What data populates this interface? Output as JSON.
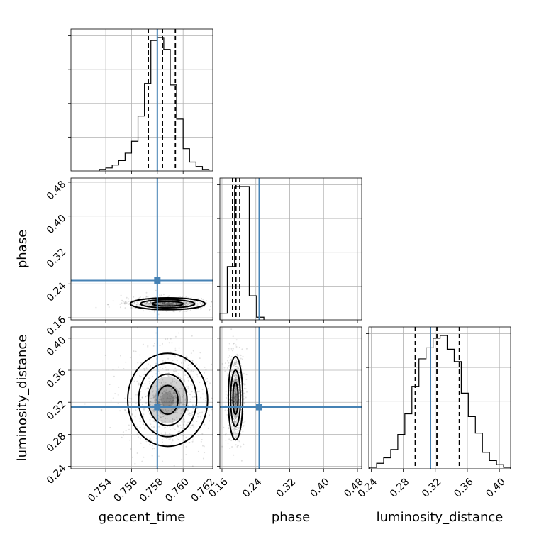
{
  "chart_data": {
    "type": "corner",
    "parameters": [
      "geocent_time",
      "phase",
      "luminosity_distance"
    ],
    "truths": {
      "geocent_time": 0.758,
      "phase": 0.248,
      "luminosity_distance": 0.314
    },
    "quantiles": {
      "geocent_time": [
        0.7573,
        0.7584,
        0.7594
      ],
      "phase": [
        0.185,
        0.193,
        0.202
      ],
      "luminosity_distance": [
        0.295,
        0.322,
        0.35
      ]
    },
    "ranges": {
      "geocent_time": [
        0.7513,
        0.7623
      ],
      "phase": [
        0.155,
        0.49
      ],
      "luminosity_distance": [
        0.237,
        0.414
      ]
    },
    "ticks": {
      "geocent_time": [
        "0.754",
        "0.756",
        "0.758",
        "0.760",
        "0.762"
      ],
      "phase": [
        "0.16",
        "0.24",
        "0.32",
        "0.40",
        "0.48"
      ],
      "luminosity_distance": [
        "0.24",
        "0.28",
        "0.32",
        "0.36",
        "0.40"
      ]
    },
    "histograms": {
      "geocent_time": {
        "edges": [
          0.7535,
          0.754,
          0.7545,
          0.755,
          0.7555,
          0.756,
          0.7565,
          0.757,
          0.7575,
          0.758,
          0.7585,
          0.759,
          0.7595,
          0.76,
          0.7605,
          0.761,
          0.7615,
          0.762
        ],
        "counts": [
          1,
          2,
          4,
          7,
          12,
          20,
          37,
          59,
          88,
          90,
          82,
          58,
          35,
          15,
          6,
          3,
          1
        ]
      },
      "phase": {
        "edges": [
          0.155,
          0.1725,
          0.1898,
          0.2071,
          0.2244,
          0.2417,
          0.259
        ],
        "counts": [
          5,
          40,
          100,
          100,
          18,
          2
        ]
      },
      "luminosity_distance": {
        "edges": [
          0.238,
          0.2468,
          0.2556,
          0.2644,
          0.2732,
          0.282,
          0.2908,
          0.2996,
          0.3084,
          0.3172,
          0.326,
          0.3348,
          0.3436,
          0.3524,
          0.3612,
          0.37,
          0.3788,
          0.3876,
          0.3964,
          0.4052,
          0.414
        ],
        "counts": [
          1,
          4,
          8,
          14,
          25,
          40,
          60,
          80,
          88,
          95,
          97,
          87,
          78,
          55,
          38,
          26,
          12,
          6,
          3,
          1
        ]
      }
    },
    "joint": {
      "phase_vs_geocent_time": {
        "center": [
          0.7588,
          0.193
        ],
        "contours": [
          {
            "rx": 0.0012,
            "ry": 0.0055
          },
          {
            "rx": 0.0021,
            "ry": 0.0095
          },
          {
            "rx": 0.0029,
            "ry": 0.014
          }
        ]
      },
      "luminosity_distance_vs_geocent_time": {
        "center": [
          0.7588,
          0.323
        ],
        "contours": [
          {
            "rx": 0.0008,
            "ry": 0.018
          },
          {
            "rx": 0.0015,
            "ry": 0.032
          },
          {
            "rx": 0.00225,
            "ry": 0.046
          },
          {
            "rx": 0.0031,
            "ry": 0.058
          }
        ]
      },
      "luminosity_distance_vs_phase": {
        "center": [
          0.192,
          0.325
        ],
        "contours": [
          {
            "rx": 0.006,
            "ry": 0.02
          },
          {
            "rx": 0.0115,
            "ry": 0.035
          },
          {
            "rx": 0.017,
            "ry": 0.052
          }
        ]
      }
    },
    "grid": true,
    "xlabels": [
      "geocent_time",
      "phase",
      "luminosity_distance"
    ],
    "ylabels": [
      "",
      "phase",
      "luminosity_distance"
    ]
  }
}
